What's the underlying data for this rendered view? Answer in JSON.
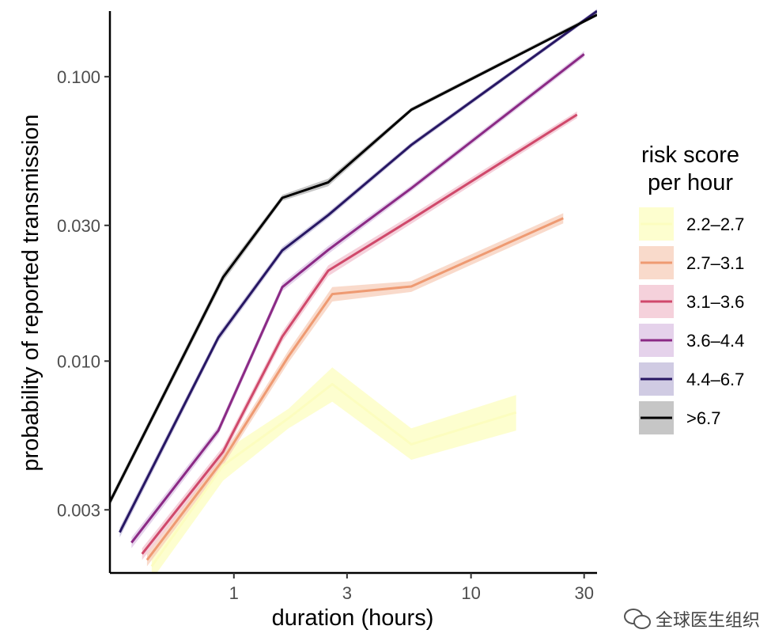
{
  "chart_data": {
    "type": "line",
    "xlabel": "duration (hours)",
    "ylabel": "probability of reported transmission",
    "x_scale": "log",
    "y_scale": "log",
    "xlim": [
      0.3,
      34
    ],
    "ylim": [
      0.0018,
      0.17
    ],
    "x_ticks": [
      1,
      3,
      10,
      30
    ],
    "x_tick_labels": [
      "1",
      "3",
      "10",
      "30"
    ],
    "y_ticks": [
      0.003,
      0.01,
      0.03,
      0.1
    ],
    "y_tick_labels": [
      "0.003",
      "0.010",
      "0.030",
      "0.100"
    ],
    "grid": false,
    "legend": {
      "title_lines": [
        "risk score",
        "per hour"
      ],
      "position": "right"
    },
    "series": [
      {
        "name": "2.2–2.7",
        "color": "#fcfdbf",
        "band": "#fcfdbf",
        "x": [
          0.45,
          0.9,
          1.7,
          2.6,
          5.6,
          15.5
        ],
        "y": [
          0.0019,
          0.0043,
          0.0063,
          0.0083,
          0.0051,
          0.0066
        ],
        "lo": [
          0.0017,
          0.0038,
          0.0058,
          0.0072,
          0.0045,
          0.0057
        ],
        "hi": [
          0.0021,
          0.0048,
          0.0068,
          0.0095,
          0.0058,
          0.0076
        ]
      },
      {
        "name": "2.7–3.1",
        "color": "#ee9a72",
        "band": "#f7cdb9",
        "x": [
          0.43,
          0.9,
          1.7,
          2.6,
          5.6,
          24.5
        ],
        "y": [
          0.002,
          0.0045,
          0.0104,
          0.0172,
          0.0183,
          0.0318
        ],
        "lo": [
          0.0019,
          0.0043,
          0.0099,
          0.0162,
          0.0175,
          0.0305
        ],
        "hi": [
          0.0021,
          0.0047,
          0.0109,
          0.0182,
          0.0191,
          0.0331
        ]
      },
      {
        "name": "3.1–3.6",
        "color": "#d0496b",
        "band": "#f2c2cf",
        "x": [
          0.41,
          0.9,
          1.6,
          2.5,
          5.6,
          28
        ],
        "y": [
          0.0021,
          0.0048,
          0.0122,
          0.0208,
          0.0315,
          0.0735
        ],
        "lo": [
          0.002,
          0.0046,
          0.0117,
          0.0199,
          0.0304,
          0.0715
        ],
        "hi": [
          0.0022,
          0.005,
          0.0127,
          0.0217,
          0.0326,
          0.0755
        ]
      },
      {
        "name": "3.6–4.4",
        "color": "#8b2a85",
        "band": "#dcc3e4",
        "x": [
          0.37,
          0.86,
          1.6,
          2.5,
          5.6,
          30
        ],
        "y": [
          0.0023,
          0.0057,
          0.0182,
          0.0246,
          0.0405,
          0.12
        ],
        "lo": [
          0.0022,
          0.0055,
          0.0176,
          0.0238,
          0.0395,
          0.117
        ],
        "hi": [
          0.0024,
          0.0059,
          0.0188,
          0.0254,
          0.0415,
          0.123
        ]
      },
      {
        "name": "4.4–6.7",
        "color": "#271763",
        "band": "#c0bad9",
        "x": [
          0.33,
          0.86,
          1.6,
          2.5,
          5.6,
          34
        ],
        "y": [
          0.0025,
          0.0121,
          0.0245,
          0.0326,
          0.0575,
          0.17
        ],
        "lo": [
          0.0024,
          0.0117,
          0.0238,
          0.0318,
          0.0563,
          0.167
        ],
        "hi": [
          0.0026,
          0.0125,
          0.0252,
          0.0334,
          0.0587,
          0.173
        ]
      },
      {
        "name": ">6.7",
        "color": "#000000",
        "band": "#b3b3b3",
        "x": [
          0.3,
          0.9,
          1.6,
          2.5,
          5.6,
          34
        ],
        "y": [
          0.0032,
          0.0197,
          0.0375,
          0.0425,
          0.0765,
          0.165
        ],
        "lo": [
          0.0031,
          0.019,
          0.0366,
          0.0412,
          0.0752,
          0.163
        ],
        "hi": [
          0.0033,
          0.0204,
          0.0384,
          0.0438,
          0.0778,
          0.168
        ]
      }
    ]
  },
  "watermark": {
    "text": "全球医生组织",
    "icon": "wechat-icon"
  }
}
